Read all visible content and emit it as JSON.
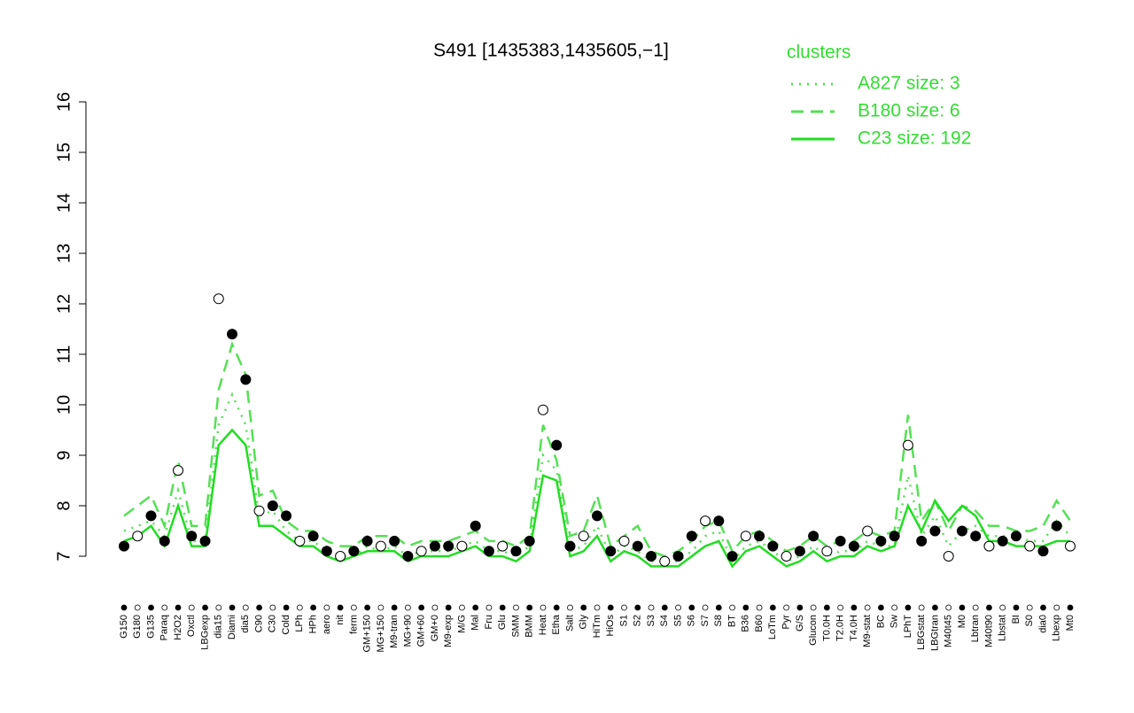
{
  "chart_data": {
    "type": "line",
    "title": "S491 [1435383,1435605,−1]",
    "legend_title": "clusters",
    "categories": [
      "G150",
      "G180",
      "G135",
      "Paraq",
      "H2O2",
      "Oxctl",
      "LBGexp",
      "dia15",
      "Diami",
      "dia5",
      "C90",
      "C30",
      "Cold",
      "LPh",
      "HPh",
      "aero",
      "nit",
      "ferm",
      "GM+150",
      "MG+150",
      "M9-tran",
      "MG+90",
      "GM+60",
      "GM+0",
      "M9-exp",
      "M/G",
      "Mal",
      "Fru",
      "Glu",
      "SMM",
      "BMM",
      "Heat",
      "Etha",
      "Salt",
      "Gly",
      "HiTm",
      "HiOs",
      "S1",
      "S2",
      "S3",
      "S4",
      "S5",
      "S6",
      "S7",
      "S8",
      "BT",
      "B36",
      "B60",
      "LoTm",
      "Pyr",
      "G/S",
      "Glucon",
      "T0.0H",
      "T2.0H",
      "T4.0H",
      "M9-stat",
      "BC",
      "Sw",
      "LPhT",
      "LBGstat",
      "LBGtran",
      "M40t45",
      "M0",
      "Lbtran",
      "M40t90",
      "Lbstat",
      "BI",
      "S0",
      "dia0",
      "Lbexp",
      "Mt0"
    ],
    "values": [
      7.2,
      7.4,
      7.8,
      7.3,
      8.7,
      7.4,
      7.3,
      12.1,
      11.4,
      10.5,
      7.9,
      8.0,
      7.8,
      7.3,
      7.4,
      7.1,
      7.0,
      7.1,
      7.3,
      7.2,
      7.3,
      7.0,
      7.1,
      7.2,
      7.2,
      7.2,
      7.6,
      7.1,
      7.2,
      7.1,
      7.3,
      9.9,
      9.2,
      7.2,
      7.4,
      7.8,
      7.1,
      7.3,
      7.2,
      7.0,
      6.9,
      7.0,
      7.4,
      7.7,
      7.7,
      7.0,
      7.4,
      7.4,
      7.2,
      7.0,
      7.1,
      7.4,
      7.1,
      7.3,
      7.2,
      7.5,
      7.3,
      7.4,
      9.2,
      7.3,
      7.5,
      7.0,
      7.5,
      7.4,
      7.2,
      7.3,
      7.4,
      7.2,
      7.1,
      7.6,
      7.2
    ],
    "series": [
      {
        "name": "A827 size: 3",
        "dash": "dotted",
        "color": "#55e055",
        "values": [
          7.5,
          7.6,
          7.7,
          7.4,
          8.3,
          7.3,
          7.3,
          9.6,
          10.2,
          9.6,
          7.8,
          7.9,
          7.5,
          7.3,
          7.3,
          7.1,
          7.0,
          7.0,
          7.2,
          7.1,
          7.2,
          7.0,
          7.1,
          7.1,
          7.1,
          7.2,
          7.3,
          7.1,
          7.1,
          7.0,
          7.2,
          9.0,
          8.7,
          7.1,
          7.2,
          7.6,
          7.0,
          7.2,
          7.1,
          6.9,
          6.9,
          6.9,
          7.1,
          7.4,
          7.5,
          6.9,
          7.2,
          7.3,
          7.1,
          6.9,
          7.0,
          7.2,
          7.0,
          7.1,
          7.1,
          7.3,
          7.2,
          7.2,
          8.6,
          7.4,
          7.8,
          7.2,
          7.5,
          7.6,
          7.4,
          7.4,
          7.4,
          7.3,
          7.3,
          7.7,
          7.4
        ]
      },
      {
        "name": "B180 size: 6",
        "dash": "dashed",
        "color": "#55e055",
        "values": [
          7.8,
          8.0,
          8.2,
          7.6,
          8.9,
          7.6,
          7.6,
          10.3,
          11.2,
          10.6,
          8.2,
          8.3,
          7.7,
          7.5,
          7.5,
          7.3,
          7.2,
          7.2,
          7.4,
          7.4,
          7.4,
          7.2,
          7.3,
          7.3,
          7.3,
          7.4,
          7.5,
          7.3,
          7.3,
          7.2,
          7.4,
          9.6,
          8.9,
          7.4,
          7.5,
          8.2,
          7.2,
          7.4,
          7.6,
          7.1,
          7.0,
          7.1,
          7.3,
          7.6,
          7.7,
          7.1,
          7.4,
          7.5,
          7.3,
          7.1,
          7.2,
          7.4,
          7.2,
          7.3,
          7.3,
          7.5,
          7.4,
          7.5,
          9.8,
          7.7,
          8.1,
          7.5,
          8.0,
          7.9,
          7.6,
          7.6,
          7.5,
          7.5,
          7.6,
          8.1,
          7.7
        ]
      },
      {
        "name": "C23 size: 192",
        "dash": "solid",
        "color": "#22dd22",
        "values": [
          7.3,
          7.4,
          7.6,
          7.2,
          8.0,
          7.2,
          7.2,
          9.2,
          9.5,
          9.2,
          7.6,
          7.6,
          7.4,
          7.2,
          7.2,
          7.0,
          6.9,
          7.0,
          7.1,
          7.1,
          7.1,
          6.9,
          7.0,
          7.0,
          7.0,
          7.1,
          7.2,
          7.0,
          7.0,
          6.9,
          7.1,
          8.6,
          8.5,
          7.0,
          7.1,
          7.4,
          6.9,
          7.1,
          7.0,
          6.8,
          6.8,
          6.8,
          7.0,
          7.2,
          7.3,
          6.8,
          7.1,
          7.2,
          7.0,
          6.8,
          6.9,
          7.1,
          6.9,
          7.0,
          7.0,
          7.2,
          7.1,
          7.2,
          8.0,
          7.5,
          8.1,
          7.7,
          8.0,
          7.8,
          7.3,
          7.3,
          7.2,
          7.2,
          7.2,
          7.3,
          7.3
        ]
      }
    ],
    "ylim": [
      7,
      16
    ],
    "yticks": [
      7,
      8,
      9,
      10,
      11,
      12,
      13,
      14,
      15,
      16
    ]
  }
}
